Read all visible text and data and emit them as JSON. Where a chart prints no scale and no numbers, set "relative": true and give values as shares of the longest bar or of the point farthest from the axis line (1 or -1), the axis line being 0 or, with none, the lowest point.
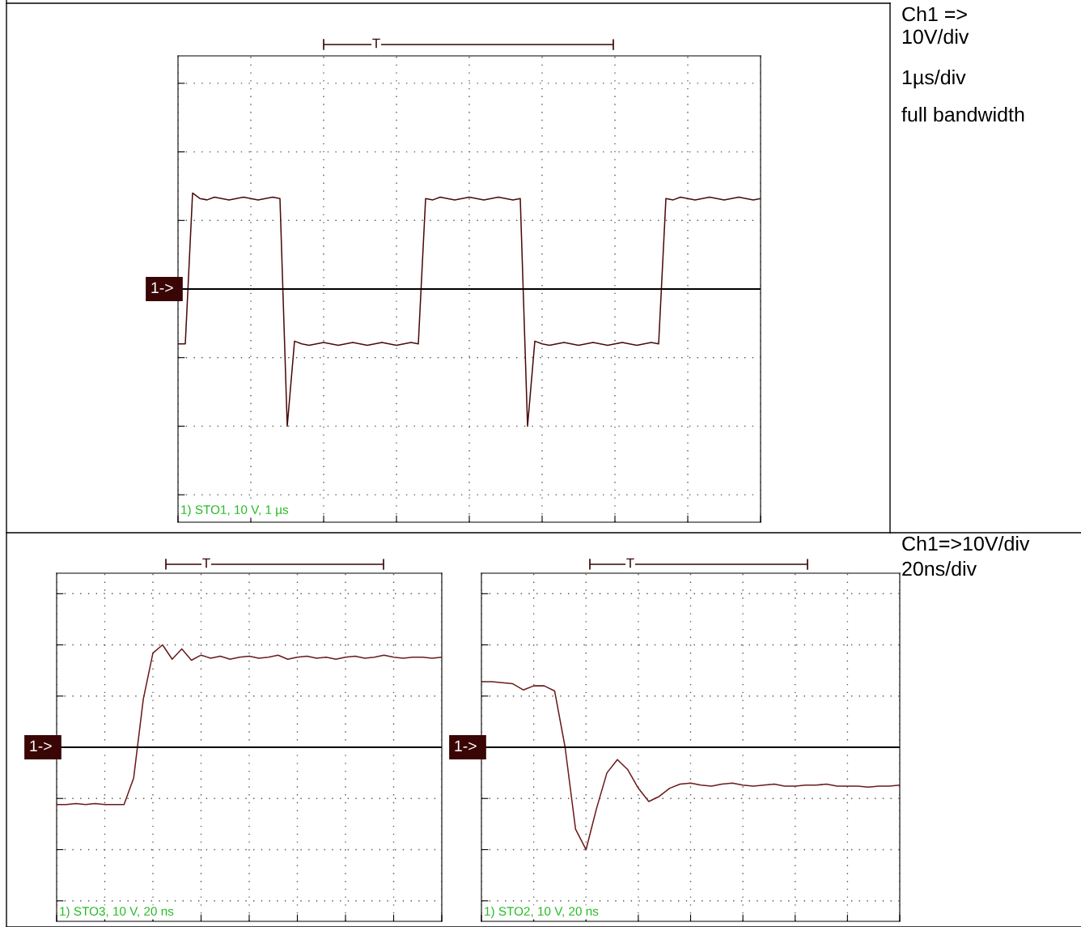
{
  "chart_data": [
    {
      "type": "line",
      "relative": true,
      "grid": true,
      "legend": false,
      "categories": [
        null,
        null,
        null,
        null,
        null,
        null,
        null,
        null,
        null,
        null,
        null,
        null,
        null,
        null,
        null,
        null,
        null,
        null,
        null,
        null,
        null,
        null,
        null,
        null,
        null,
        null,
        null,
        null,
        null,
        null,
        null,
        null,
        null,
        null,
        null,
        null,
        null,
        null,
        null,
        null,
        null,
        null,
        null,
        null,
        null,
        null,
        null,
        null,
        null,
        null,
        null,
        null,
        null,
        null,
        null,
        null,
        null,
        null,
        null,
        null,
        null,
        null,
        null,
        null,
        null,
        null,
        null,
        null,
        null,
        null,
        null,
        null,
        null,
        null,
        null,
        null,
        null,
        null,
        null,
        null,
        null
      ],
      "series": [
        {
          "color": "#4a0a0a",
          "values": [
            -0.4,
            -0.4,
            0.7,
            0.66,
            0.65,
            0.67,
            0.66,
            0.65,
            0.66,
            0.67,
            0.66,
            0.65,
            0.66,
            0.67,
            0.66,
            -1,
            -0.38,
            -0.4,
            -0.41,
            -0.4,
            -0.39,
            -0.4,
            -0.41,
            -0.4,
            -0.39,
            -0.4,
            -0.41,
            -0.4,
            -0.39,
            -0.4,
            -0.41,
            -0.4,
            -0.39,
            -0.4,
            0.66,
            0.65,
            0.67,
            0.66,
            0.65,
            0.66,
            0.67,
            0.66,
            0.65,
            0.66,
            0.67,
            0.66,
            0.65,
            0.66,
            -1,
            -0.38,
            -0.4,
            -0.41,
            -0.4,
            -0.39,
            -0.4,
            -0.41,
            -0.4,
            -0.39,
            -0.4,
            -0.41,
            -0.4,
            -0.39,
            -0.4,
            -0.41,
            -0.4,
            -0.39,
            -0.4,
            0.66,
            0.65,
            0.67,
            0.66,
            0.65,
            0.66,
            0.67,
            0.66,
            0.65,
            0.66,
            0.67,
            0.66,
            0.65,
            0.66
          ]
        }
      ],
      "annotations": [
        "Ch1 =>\n10V/div",
        "1µs/div",
        "full bandwidth",
        "1->",
        "1) STO1, 10 V, 1 µs",
        "T"
      ]
    },
    {
      "type": "line",
      "relative": true,
      "grid": true,
      "legend": false,
      "categories": [
        null,
        null,
        null,
        null,
        null,
        null,
        null,
        null,
        null,
        null,
        null,
        null,
        null,
        null,
        null,
        null,
        null,
        null,
        null,
        null,
        null,
        null,
        null,
        null,
        null,
        null,
        null,
        null,
        null,
        null,
        null,
        null,
        null,
        null,
        null,
        null,
        null,
        null,
        null,
        null,
        null
      ],
      "series": [
        {
          "color": "#6a1a1a",
          "values": [
            -0.56,
            -0.56,
            -0.55,
            -0.56,
            -0.55,
            -0.56,
            -0.56,
            -0.56,
            -0.3,
            0.47,
            0.92,
            1,
            0.86,
            0.96,
            0.85,
            0.9,
            0.87,
            0.89,
            0.86,
            0.88,
            0.89,
            0.87,
            0.88,
            0.9,
            0.86,
            0.88,
            0.89,
            0.87,
            0.88,
            0.86,
            0.88,
            0.89,
            0.87,
            0.88,
            0.9,
            0.88,
            0.87,
            0.88,
            0.88,
            0.87,
            0.88
          ]
        }
      ],
      "annotations": [
        "1->",
        "1) STO3, 10 V, 20 ns",
        "T"
      ]
    },
    {
      "type": "line",
      "relative": true,
      "grid": true,
      "legend": false,
      "categories": [
        null,
        null,
        null,
        null,
        null,
        null,
        null,
        null,
        null,
        null,
        null,
        null,
        null,
        null,
        null,
        null,
        null,
        null,
        null,
        null,
        null,
        null,
        null,
        null,
        null,
        null,
        null,
        null,
        null,
        null,
        null,
        null,
        null,
        null,
        null,
        null,
        null,
        null,
        null,
        null,
        null
      ],
      "series": [
        {
          "color": "#6a1a1a",
          "values": [
            0.64,
            0.64,
            0.63,
            0.62,
            0.56,
            0.6,
            0.6,
            0.55,
            0.0,
            -0.8,
            -1,
            -0.6,
            -0.25,
            -0.12,
            -0.22,
            -0.4,
            -0.53,
            -0.48,
            -0.4,
            -0.36,
            -0.35,
            -0.37,
            -0.38,
            -0.36,
            -0.35,
            -0.37,
            -0.38,
            -0.37,
            -0.36,
            -0.38,
            -0.38,
            -0.37,
            -0.37,
            -0.36,
            -0.38,
            -0.38,
            -0.38,
            -0.39,
            -0.38,
            -0.38,
            -0.37
          ]
        }
      ],
      "annotations": [
        "1->",
        "1) STO2, 10 V, 20 ns",
        "T",
        "Ch1=>10V/div",
        "20ns/div"
      ]
    }
  ]
}
